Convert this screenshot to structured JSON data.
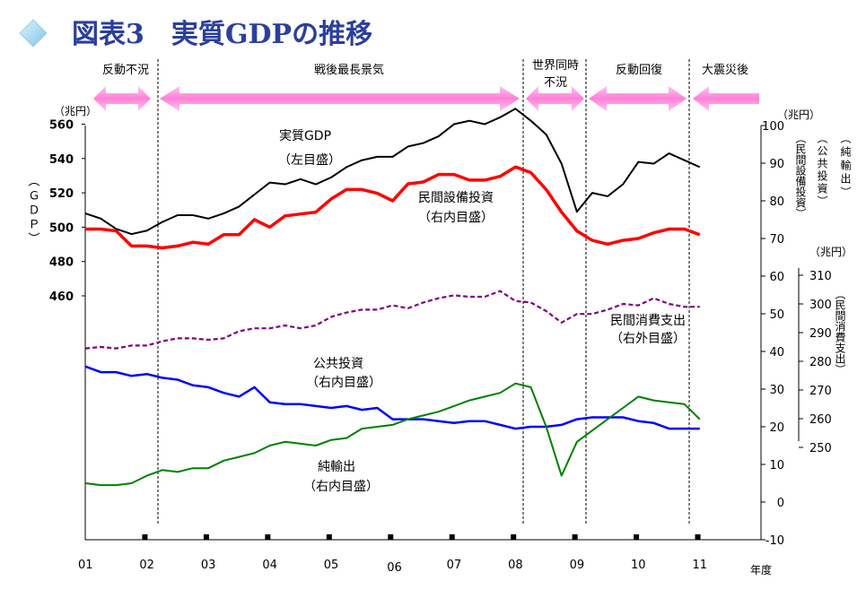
{
  "chart_data": {
    "type": "line",
    "title": "図表3　実質GDPの推移",
    "x_unit": "年度",
    "x_ticks": [
      "01",
      "02",
      "03",
      "04",
      "05",
      "06",
      "07",
      "08",
      "09",
      "10",
      "11"
    ],
    "periods": [
      {
        "label": "反動不況"
      },
      {
        "label": "戦後最長景気"
      },
      {
        "label": "世界同時\n不況"
      },
      {
        "label": "反動回復"
      },
      {
        "label": "大震災後"
      }
    ],
    "axes": {
      "left": {
        "unit": "（兆円）",
        "label": "（ＧＤＰ）",
        "ticks": [
          460,
          480,
          500,
          520,
          540,
          560
        ],
        "range": [
          400,
          560
        ]
      },
      "right_inner": {
        "unit": "（兆円）",
        "labels": [
          "（民間設備投資）",
          "（公共投資）",
          "（純輸出）"
        ],
        "ticks": [
          -10,
          0,
          10,
          20,
          30,
          40,
          50,
          60,
          70,
          80,
          90,
          100
        ],
        "range": [
          -10,
          100
        ]
      },
      "right_outer": {
        "unit": "（兆円）",
        "label": "（民間消費支出）",
        "ticks": [
          250,
          260,
          270,
          280,
          290,
          300,
          310
        ],
        "range": [
          250,
          310
        ]
      }
    },
    "series": [
      {
        "name": "実質GDP",
        "axis_label": "（左目盛）",
        "axis": "left",
        "color": "#000000",
        "x": [
          2001.0,
          2001.25,
          2001.5,
          2001.75,
          2002.0,
          2002.25,
          2002.5,
          2002.75,
          2003.0,
          2003.25,
          2003.5,
          2003.75,
          2004.0,
          2004.25,
          2004.5,
          2004.75,
          2005.0,
          2005.25,
          2005.5,
          2005.75,
          2006.0,
          2006.25,
          2006.5,
          2006.75,
          2007.0,
          2007.25,
          2007.5,
          2007.75,
          2008.0,
          2008.25,
          2008.5,
          2008.75,
          2009.0,
          2009.25,
          2009.5,
          2009.75,
          2010.0,
          2010.25,
          2010.5,
          2010.75,
          2011.0
        ],
        "y": [
          508,
          505,
          499,
          496,
          498,
          503,
          507,
          507,
          505,
          508,
          512,
          519,
          526,
          525,
          528,
          525,
          529,
          535,
          539,
          541,
          541,
          547,
          549,
          553,
          560,
          562,
          560,
          564,
          569,
          562,
          554,
          537,
          509,
          520,
          518,
          525,
          538,
          537,
          543,
          539,
          535
        ]
      },
      {
        "name": "民間設備投資",
        "axis_label": "（右内目盛）",
        "axis": "right_inner",
        "color": "#ff0000",
        "x": [
          2001.0,
          2001.25,
          2001.5,
          2001.75,
          2002.0,
          2002.25,
          2002.5,
          2002.75,
          2003.0,
          2003.25,
          2003.5,
          2003.75,
          2004.0,
          2004.25,
          2004.5,
          2004.75,
          2005.0,
          2005.25,
          2005.5,
          2005.75,
          2006.0,
          2006.25,
          2006.5,
          2006.75,
          2007.0,
          2007.25,
          2007.5,
          2007.75,
          2008.0,
          2008.25,
          2008.5,
          2008.75,
          2009.0,
          2009.25,
          2009.5,
          2009.75,
          2010.0,
          2010.25,
          2010.5,
          2010.75,
          2011.0
        ],
        "y": [
          72.5,
          72.5,
          72,
          68,
          68,
          67.5,
          68,
          69,
          68.5,
          71,
          71,
          75,
          73,
          76,
          76.5,
          77,
          80.5,
          83,
          83,
          82,
          80,
          84.5,
          85,
          87,
          87,
          85.5,
          85.5,
          86.5,
          89,
          87.5,
          83,
          77,
          72,
          69.5,
          68.5,
          69.5,
          70,
          71.5,
          72.5,
          72.5,
          71
        ]
      },
      {
        "name": "民間消費支出",
        "axis_label": "（右外目盛）",
        "axis": "right_outer",
        "color": "#800080",
        "x": [
          2001.0,
          2001.25,
          2001.5,
          2001.75,
          2002.0,
          2002.25,
          2002.5,
          2002.75,
          2003.0,
          2003.25,
          2003.5,
          2003.75,
          2004.0,
          2004.25,
          2004.5,
          2004.75,
          2005.0,
          2005.25,
          2005.5,
          2005.75,
          2006.0,
          2006.25,
          2006.5,
          2006.75,
          2007.0,
          2007.25,
          2007.5,
          2007.75,
          2008.0,
          2008.25,
          2008.5,
          2008.75,
          2009.0,
          2009.25,
          2009.5,
          2009.75,
          2010.0,
          2010.25,
          2010.5,
          2010.75,
          2011.0
        ],
        "y": [
          284.5,
          285,
          284.5,
          285.5,
          285.5,
          287,
          288,
          288,
          287.5,
          288,
          290.5,
          291.5,
          291.5,
          292.5,
          291.5,
          292.5,
          295.5,
          297,
          298,
          298,
          299.5,
          298.5,
          300.5,
          302,
          303,
          302.5,
          302.5,
          304.5,
          301,
          300.5,
          297.5,
          293.5,
          296.5,
          296.5,
          298,
          300,
          299.5,
          302,
          300,
          299,
          299
        ]
      },
      {
        "name": "公共投資",
        "axis_label": "（右内目盛）",
        "axis": "right_inner",
        "color": "#0000ff",
        "x": [
          2001.0,
          2001.25,
          2001.5,
          2001.75,
          2002.0,
          2002.25,
          2002.5,
          2002.75,
          2003.0,
          2003.25,
          2003.5,
          2003.75,
          2004.0,
          2004.25,
          2004.5,
          2004.75,
          2005.0,
          2005.25,
          2005.5,
          2005.75,
          2006.0,
          2006.25,
          2006.5,
          2006.75,
          2007.0,
          2007.25,
          2007.5,
          2007.75,
          2008.0,
          2008.25,
          2008.5,
          2008.75,
          2009.0,
          2009.25,
          2009.5,
          2009.75,
          2010.0,
          2010.25,
          2010.5,
          2010.75,
          2011.0
        ],
        "y": [
          36,
          34.5,
          34.5,
          33.5,
          34,
          33,
          32.5,
          31,
          30.5,
          29,
          28,
          30.5,
          26.5,
          26,
          26,
          25.5,
          25,
          25.5,
          24.5,
          25,
          22,
          22,
          22,
          21.5,
          21,
          21.5,
          21.5,
          20.5,
          19.5,
          20,
          20,
          20.5,
          22,
          22.5,
          22.5,
          22.5,
          21.5,
          21,
          19.5,
          19.5,
          19.5
        ]
      },
      {
        "name": "純輸出",
        "axis_label": "（右内目盛）",
        "axis": "right_inner",
        "color": "#008000",
        "x": [
          2001.0,
          2001.25,
          2001.5,
          2001.75,
          2002.0,
          2002.25,
          2002.5,
          2002.75,
          2003.0,
          2003.25,
          2003.5,
          2003.75,
          2004.0,
          2004.25,
          2004.5,
          2004.75,
          2005.0,
          2005.25,
          2005.5,
          2005.75,
          2006.0,
          2006.25,
          2006.5,
          2006.75,
          2007.0,
          2007.25,
          2007.5,
          2007.75,
          2008.0,
          2008.25,
          2008.5,
          2008.75,
          2009.0,
          2009.25,
          2009.5,
          2009.75,
          2010.0,
          2010.25,
          2010.5,
          2010.75,
          2011.0
        ],
        "y": [
          5,
          4.5,
          4.5,
          5,
          7,
          8.5,
          8,
          9,
          9,
          11,
          12,
          13,
          15,
          16,
          15.5,
          15,
          16.5,
          17,
          19.5,
          20,
          20.5,
          22,
          23,
          24,
          25.5,
          27,
          28,
          29,
          31.5,
          30.5,
          20,
          7,
          16,
          19,
          22,
          25,
          28,
          27,
          26.5,
          26,
          22
        ]
      }
    ]
  }
}
